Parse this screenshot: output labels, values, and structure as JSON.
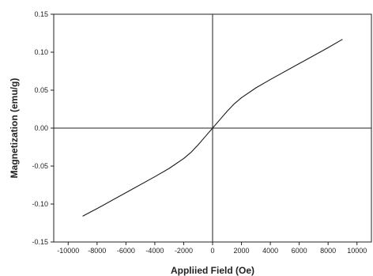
{
  "chart_data": {
    "type": "line",
    "title": "",
    "xlabel": "Appliied Field (Oe)",
    "ylabel": "Magnetization (emu/g)",
    "xlim": [
      -11000,
      11000
    ],
    "ylim": [
      -0.15,
      0.15
    ],
    "x_ticks": [
      -10000,
      -8000,
      -6000,
      -4000,
      -2000,
      0,
      2000,
      4000,
      6000,
      8000,
      10000
    ],
    "x_tick_labels": [
      "-10000",
      "-8000",
      "-6000",
      "-4000",
      "-2000",
      "0",
      "2000",
      "4000",
      "6000",
      "8000",
      "10000"
    ],
    "y_ticks": [
      -0.15,
      -0.1,
      -0.05,
      0.0,
      0.05,
      0.1,
      0.15
    ],
    "y_tick_labels": [
      "-0.15",
      "-0.10",
      "-0.05",
      "0.00",
      "0.05",
      "0.10",
      "0.15"
    ],
    "grid": false,
    "zero_lines": true,
    "series": [
      {
        "color": "#1a1a1a",
        "x": [
          -9000,
          -8000,
          -6000,
          -4000,
          -3000,
          -2000,
          -1500,
          -1000,
          -500,
          0,
          500,
          1000,
          1500,
          2000,
          3000,
          4000,
          6000,
          8000,
          9000
        ],
        "y": [
          -0.116,
          -0.106,
          -0.085,
          -0.064,
          -0.053,
          -0.04,
          -0.032,
          -0.022,
          -0.011,
          0.0,
          0.011,
          0.022,
          0.032,
          0.04,
          0.053,
          0.064,
          0.085,
          0.106,
          0.117
        ]
      }
    ]
  }
}
